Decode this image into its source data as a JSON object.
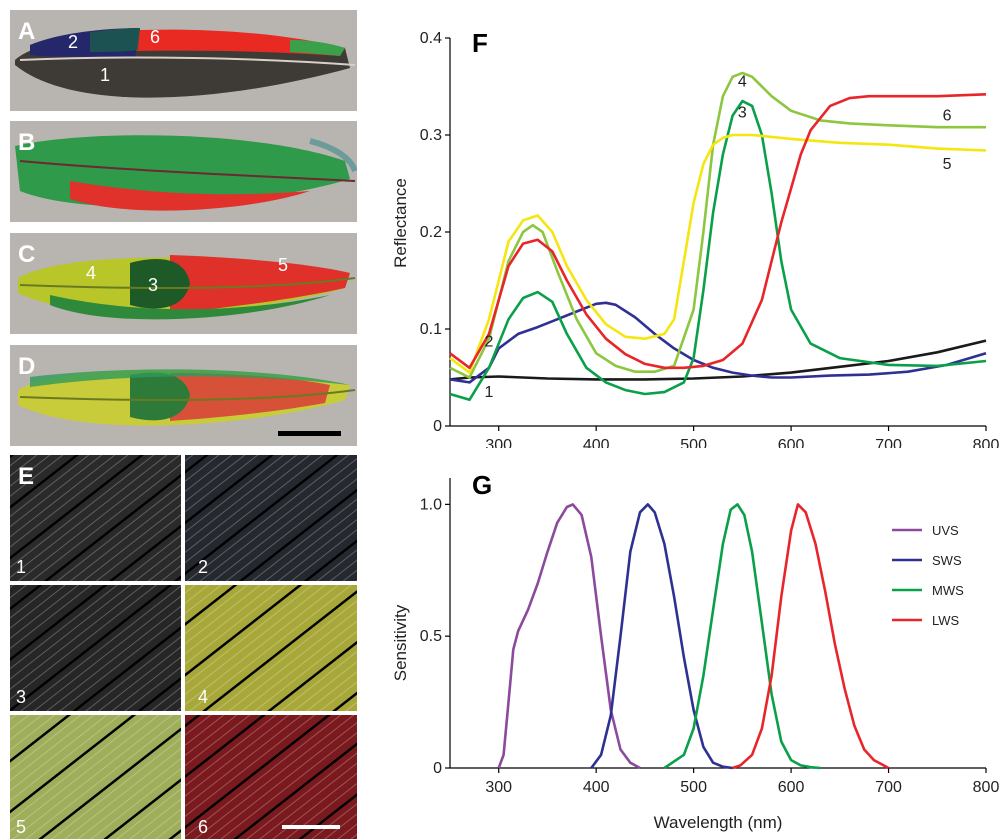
{
  "panels": {
    "A": "A",
    "B": "B",
    "C": "C",
    "D": "D",
    "E": "E",
    "F": "F",
    "G": "G"
  },
  "feather_labels": {
    "a1": "1",
    "a2": "2",
    "a6": "6",
    "c3": "3",
    "c4": "4",
    "c5": "5"
  },
  "micro_labels": [
    "1",
    "2",
    "3",
    "4",
    "5",
    "6"
  ],
  "colors": {
    "curve1": "#1a1a1a",
    "curve2": "#2e3192",
    "curve3": "#0aa04a",
    "curve4": "#8dc63f",
    "curve5": "#f5e60f",
    "curve6": "#e8262a",
    "uvs": "#8b4a9c",
    "sws": "#2e3192",
    "mws": "#0aa04a",
    "lws": "#e8262a"
  },
  "chart_data": [
    {
      "type": "line",
      "panel": "F",
      "title": "",
      "xlabel": "",
      "ylabel": "Reflectance",
      "xlim": [
        250,
        800
      ],
      "ylim": [
        0,
        0.4
      ],
      "x_ticks": [
        "300",
        "400",
        "500",
        "600",
        "700",
        "800"
      ],
      "y_ticks": [
        "0",
        "0.1",
        "0.2",
        "0.3",
        "0.4"
      ],
      "series": [
        {
          "name": "1",
          "color": "#1a1a1a",
          "x": [
            250,
            270,
            300,
            350,
            400,
            450,
            500,
            550,
            600,
            650,
            700,
            750,
            800
          ],
          "y": [
            0.048,
            0.05,
            0.051,
            0.049,
            0.048,
            0.048,
            0.049,
            0.051,
            0.055,
            0.061,
            0.067,
            0.076,
            0.088
          ]
        },
        {
          "name": "2",
          "color": "#2e3192",
          "x": [
            250,
            270,
            290,
            300,
            320,
            340,
            360,
            380,
            400,
            410,
            420,
            440,
            460,
            480,
            500,
            520,
            540,
            560,
            580,
            600,
            640,
            680,
            720,
            760,
            800
          ],
          "y": [
            0.048,
            0.045,
            0.06,
            0.08,
            0.095,
            0.102,
            0.11,
            0.118,
            0.126,
            0.127,
            0.125,
            0.112,
            0.095,
            0.08,
            0.068,
            0.06,
            0.055,
            0.052,
            0.05,
            0.05,
            0.052,
            0.053,
            0.056,
            0.063,
            0.075
          ]
        },
        {
          "name": "3",
          "color": "#0aa04a",
          "x": [
            250,
            270,
            290,
            310,
            325,
            340,
            355,
            370,
            390,
            410,
            430,
            450,
            470,
            490,
            500,
            510,
            520,
            530,
            540,
            550,
            560,
            570,
            580,
            590,
            600,
            620,
            650,
            700,
            750,
            800
          ],
          "y": [
            0.033,
            0.027,
            0.06,
            0.11,
            0.132,
            0.138,
            0.128,
            0.095,
            0.06,
            0.045,
            0.037,
            0.033,
            0.035,
            0.045,
            0.07,
            0.14,
            0.22,
            0.28,
            0.32,
            0.335,
            0.33,
            0.3,
            0.24,
            0.17,
            0.12,
            0.085,
            0.07,
            0.063,
            0.062,
            0.067
          ]
        },
        {
          "name": "4",
          "color": "#8dc63f",
          "x": [
            250,
            270,
            290,
            310,
            325,
            335,
            345,
            360,
            380,
            400,
            420,
            440,
            460,
            480,
            500,
            510,
            520,
            530,
            540,
            550,
            560,
            580,
            600,
            630,
            660,
            700,
            750,
            800
          ],
          "y": [
            0.06,
            0.05,
            0.09,
            0.17,
            0.2,
            0.207,
            0.2,
            0.16,
            0.11,
            0.075,
            0.062,
            0.056,
            0.056,
            0.062,
            0.12,
            0.2,
            0.29,
            0.34,
            0.36,
            0.364,
            0.36,
            0.34,
            0.325,
            0.315,
            0.312,
            0.31,
            0.308,
            0.308
          ]
        },
        {
          "name": "5",
          "color": "#f5e60f",
          "x": [
            250,
            270,
            290,
            310,
            325,
            340,
            355,
            370,
            390,
            410,
            430,
            450,
            470,
            480,
            490,
            500,
            510,
            520,
            530,
            540,
            560,
            600,
            650,
            700,
            750,
            800
          ],
          "y": [
            0.07,
            0.055,
            0.11,
            0.19,
            0.212,
            0.217,
            0.2,
            0.165,
            0.13,
            0.105,
            0.092,
            0.09,
            0.095,
            0.11,
            0.17,
            0.23,
            0.27,
            0.29,
            0.297,
            0.3,
            0.3,
            0.296,
            0.292,
            0.29,
            0.286,
            0.284
          ]
        },
        {
          "name": "6",
          "color": "#e8262a",
          "x": [
            250,
            270,
            290,
            310,
            325,
            340,
            355,
            370,
            390,
            410,
            430,
            450,
            470,
            490,
            510,
            530,
            550,
            570,
            580,
            590,
            600,
            610,
            620,
            640,
            660,
            680,
            700,
            750,
            800
          ],
          "y": [
            0.075,
            0.06,
            0.095,
            0.165,
            0.188,
            0.192,
            0.18,
            0.15,
            0.115,
            0.09,
            0.074,
            0.064,
            0.06,
            0.06,
            0.062,
            0.068,
            0.085,
            0.13,
            0.17,
            0.21,
            0.245,
            0.28,
            0.305,
            0.33,
            0.338,
            0.34,
            0.34,
            0.34,
            0.342
          ]
        }
      ]
    },
    {
      "type": "line",
      "panel": "G",
      "title": "",
      "xlabel": "Wavelength (nm)",
      "ylabel": "Sensitivity",
      "xlim": [
        250,
        800
      ],
      "ylim": [
        0,
        1.1
      ],
      "x_ticks": [
        "300",
        "400",
        "500",
        "600",
        "700",
        "800"
      ],
      "y_ticks": [
        "0",
        "0.5",
        "1.0"
      ],
      "legend": "right",
      "series": [
        {
          "name": "UVS",
          "color": "#8b4a9c",
          "x": [
            300,
            305,
            310,
            315,
            320,
            330,
            340,
            350,
            360,
            370,
            376,
            385,
            395,
            405,
            415,
            425,
            435,
            445
          ],
          "y": [
            0.0,
            0.05,
            0.25,
            0.45,
            0.52,
            0.6,
            0.7,
            0.82,
            0.93,
            0.99,
            1.0,
            0.96,
            0.8,
            0.5,
            0.22,
            0.07,
            0.02,
            0.0
          ]
        },
        {
          "name": "SWS",
          "color": "#2e3192",
          "x": [
            395,
            405,
            415,
            425,
            435,
            445,
            453,
            460,
            470,
            480,
            490,
            500,
            510,
            520,
            530,
            540
          ],
          "y": [
            0.0,
            0.05,
            0.2,
            0.5,
            0.82,
            0.97,
            1.0,
            0.97,
            0.85,
            0.65,
            0.42,
            0.22,
            0.08,
            0.02,
            0.005,
            0.0
          ]
        },
        {
          "name": "MWS",
          "color": "#0aa04a",
          "x": [
            470,
            490,
            500,
            510,
            520,
            530,
            538,
            545,
            552,
            560,
            570,
            580,
            590,
            600,
            610,
            620,
            630
          ],
          "y": [
            0.0,
            0.05,
            0.15,
            0.35,
            0.6,
            0.85,
            0.98,
            1.0,
            0.96,
            0.82,
            0.55,
            0.28,
            0.1,
            0.03,
            0.01,
            0.003,
            0.0
          ]
        },
        {
          "name": "LWS",
          "color": "#e8262a",
          "x": [
            540,
            548,
            560,
            570,
            580,
            590,
            600,
            607,
            615,
            625,
            635,
            645,
            655,
            665,
            675,
            685,
            695,
            700
          ],
          "y": [
            0.0,
            0.01,
            0.05,
            0.15,
            0.35,
            0.65,
            0.9,
            1.0,
            0.97,
            0.85,
            0.67,
            0.47,
            0.3,
            0.16,
            0.07,
            0.03,
            0.01,
            0.0
          ]
        }
      ]
    }
  ]
}
